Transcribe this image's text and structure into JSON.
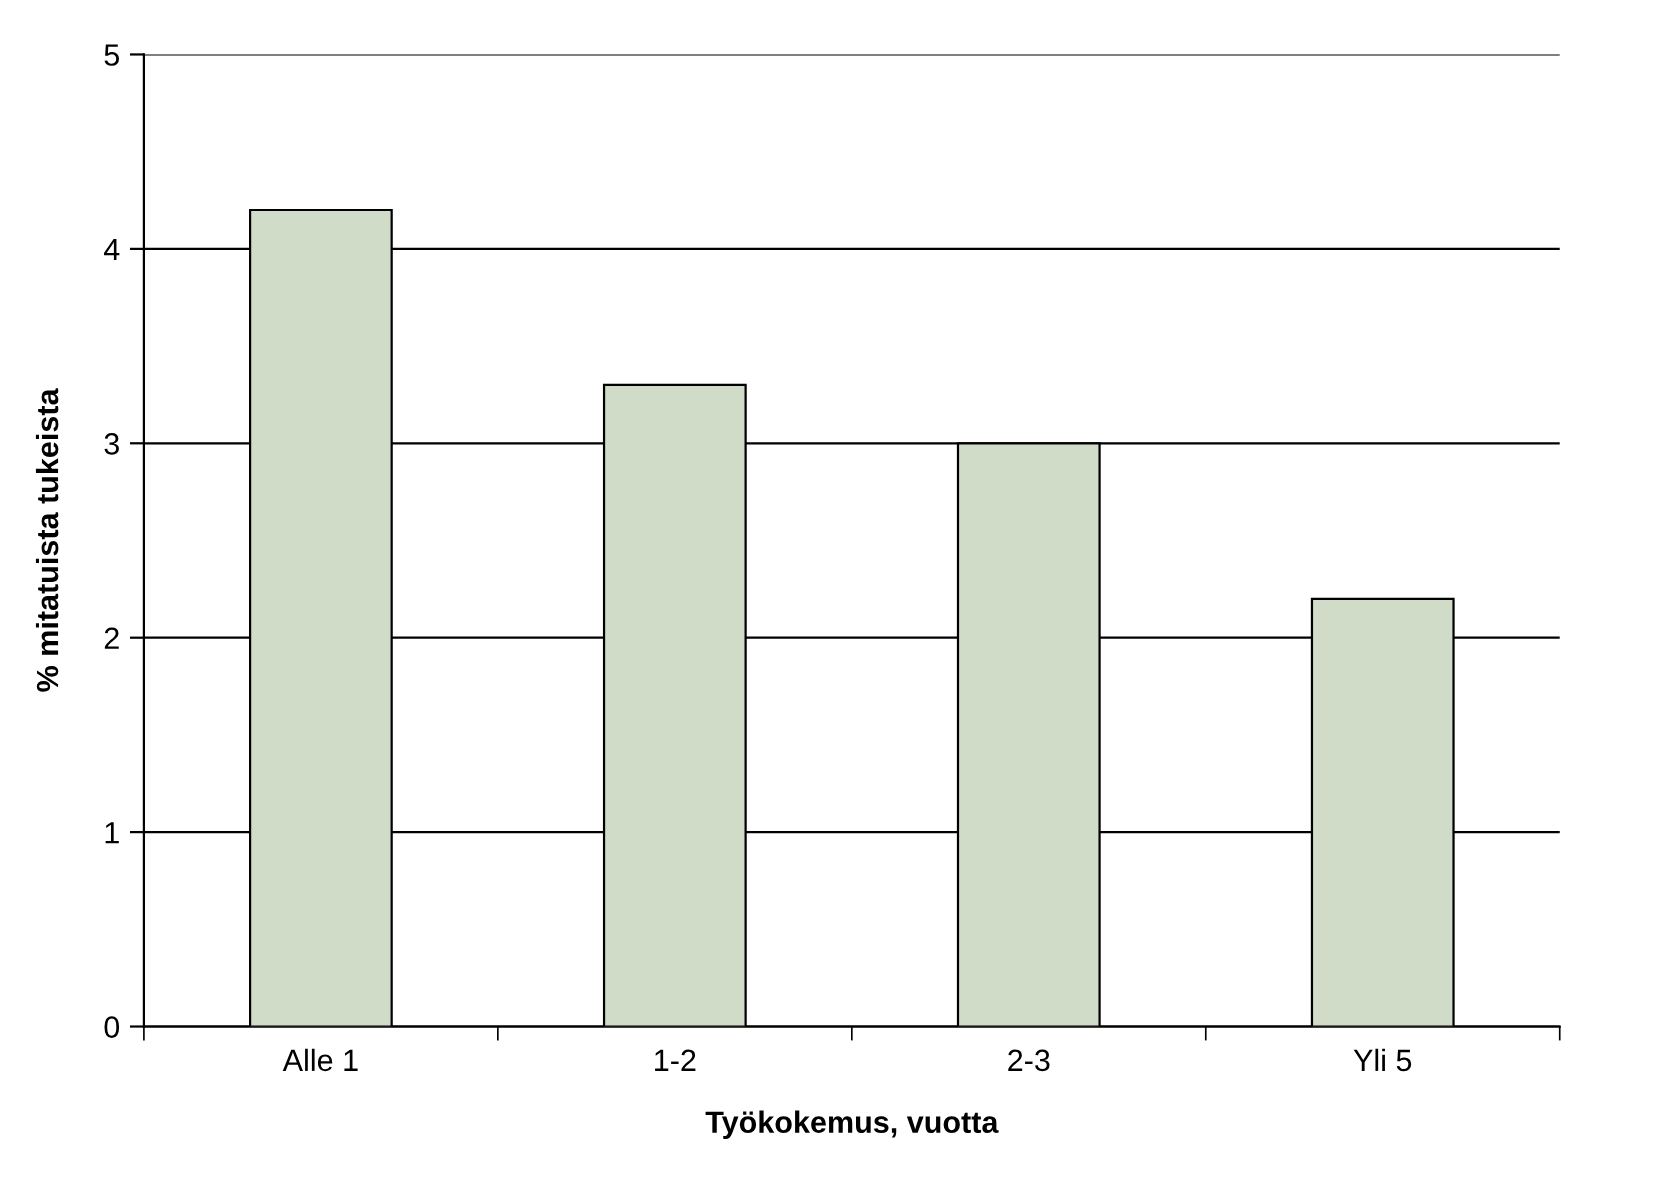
{
  "chart_data": {
    "type": "bar",
    "xlabel": "Työkokemus, vuotta",
    "ylabel": "% mitatuista tukeista",
    "categories": [
      "Alle 1",
      "1-2",
      "2-3",
      "Yli 5"
    ],
    "values": [
      4.2,
      3.3,
      3.0,
      2.2
    ],
    "color": "#d0dcc8",
    "ylim": [
      0,
      5
    ],
    "yticks": [
      0,
      1,
      2,
      3,
      4,
      5
    ],
    "grid": "y"
  }
}
